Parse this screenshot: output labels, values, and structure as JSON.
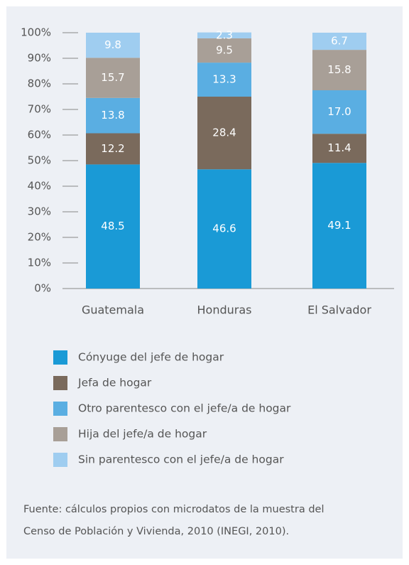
{
  "chart_data": {
    "type": "stacked_bar",
    "categories": [
      "Guatemala",
      "Honduras",
      "El Salvador"
    ],
    "series": [
      {
        "name": "Cónyuge del jefe de hogar",
        "color": "#1a9ad6",
        "values": [
          48.5,
          46.6,
          49.1
        ],
        "value_labels": [
          "48.5",
          "46.6",
          "49.1"
        ]
      },
      {
        "name": "Jefa de hogar",
        "color": "#7a6a5c",
        "values": [
          12.2,
          28.4,
          11.4
        ],
        "value_labels": [
          "12.2",
          "28.4",
          "11.4"
        ]
      },
      {
        "name": "Otro parentesco con el jefe/a de hogar",
        "color": "#5aaee2",
        "values": [
          13.8,
          13.3,
          17.0
        ],
        "value_labels": [
          "13.8",
          "13.3",
          "17.0"
        ]
      },
      {
        "name": "Hija del jefe/a de hogar",
        "color": "#a89f97",
        "values": [
          15.7,
          9.5,
          15.8
        ],
        "value_labels": [
          "15.7",
          "9.5",
          "15.8"
        ]
      },
      {
        "name": "Sin parentesco con el jefe/a de hogar",
        "color": "#9fcdf0",
        "values": [
          9.8,
          2.3,
          6.7
        ],
        "value_labels": [
          "9.8",
          "2.3",
          "6.7"
        ]
      }
    ],
    "ylim": [
      0,
      100
    ],
    "yticks": [
      {
        "value": 0,
        "label": "0%"
      },
      {
        "value": 10,
        "label": "10%"
      },
      {
        "value": 20,
        "label": "20%"
      },
      {
        "value": 30,
        "label": "30%"
      },
      {
        "value": 40,
        "label": "40%"
      },
      {
        "value": 50,
        "label": "50%"
      },
      {
        "value": 60,
        "label": "60%"
      },
      {
        "value": 70,
        "label": "70%"
      },
      {
        "value": 80,
        "label": "80%"
      },
      {
        "value": 90,
        "label": "90%"
      },
      {
        "value": 100,
        "label": "100%"
      }
    ],
    "grid": false,
    "source": [
      "Fuente: cálculos propios con microdatos de la muestra del",
      "Censo de Población y Vivienda, 2010 (INEGI, 2010)."
    ]
  }
}
